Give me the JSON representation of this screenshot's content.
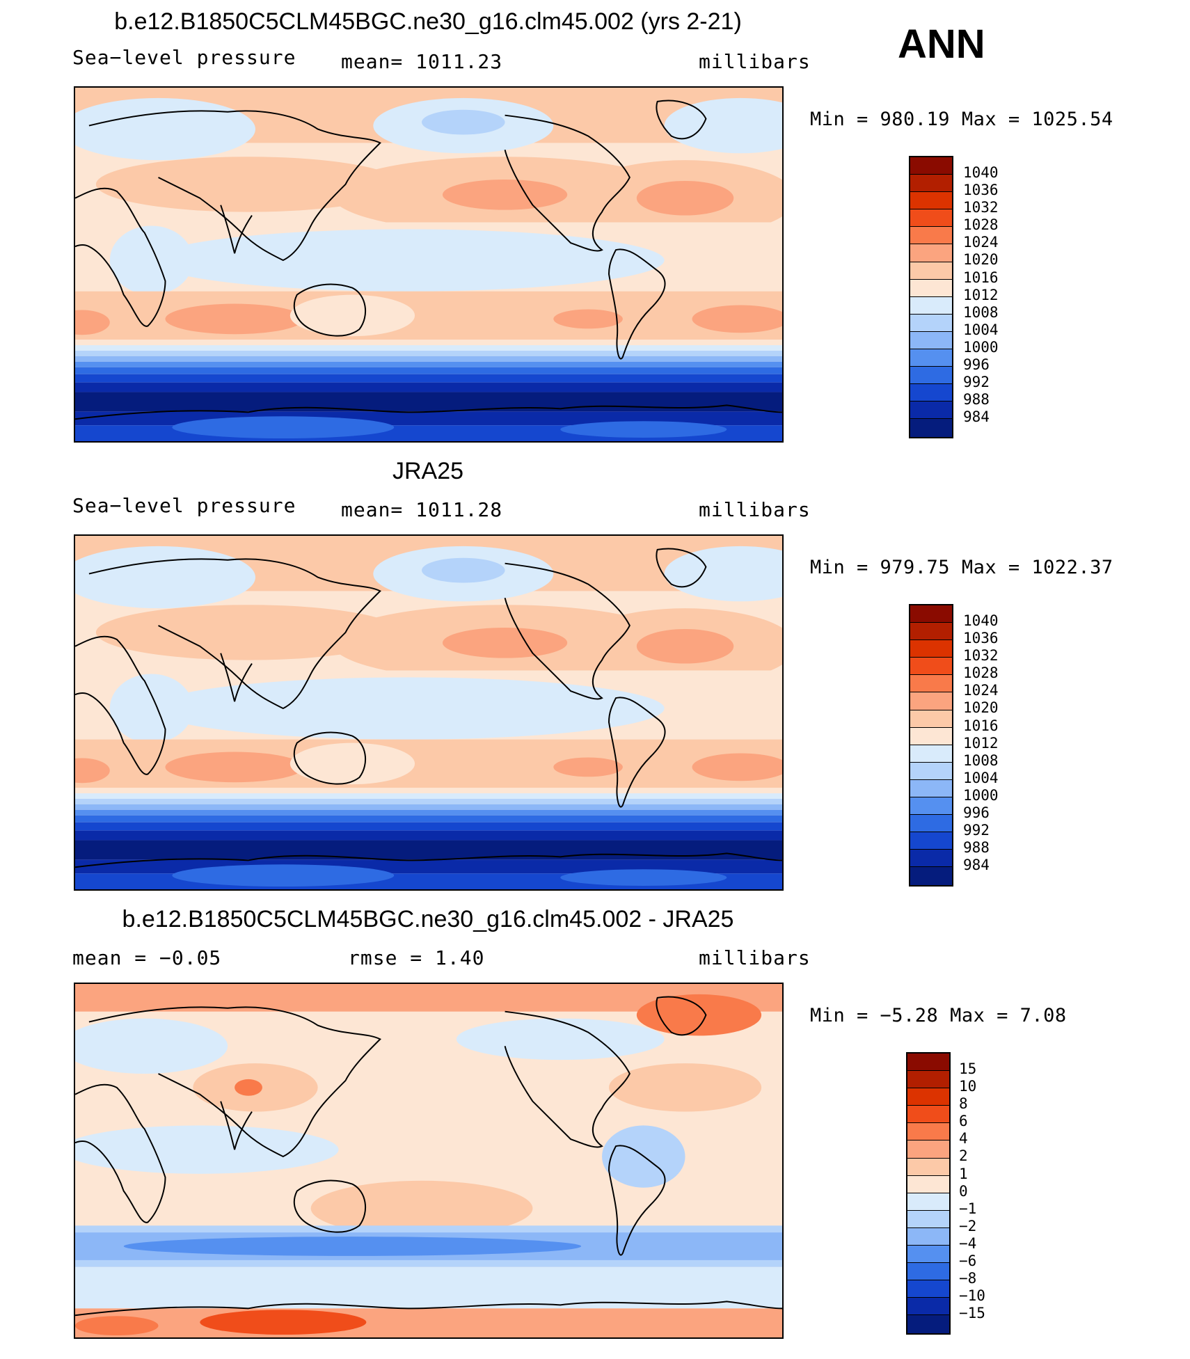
{
  "season": "ANN",
  "panels": [
    {
      "title": "b.e12.B1850C5CLM45BGC.ne30_g16.clm45.002 (yrs 2-21)",
      "left": "Sea−level pressure",
      "center": "mean=  1011.23",
      "right": "millibars",
      "minmax": "Min  =  980.19  Max  =  1025.54",
      "map_kind": "abs"
    },
    {
      "title": "JRA25",
      "left": "Sea−level pressure",
      "center": "mean=  1011.28",
      "right": "millibars",
      "minmax": "Min  =  979.75  Max  =  1022.37",
      "map_kind": "abs"
    },
    {
      "title": "b.e12.B1850C5CLM45BGC.ne30_g16.clm45.002 - JRA25",
      "left": "mean  =    −0.05",
      "center": "rmse  =     1.40",
      "right": "millibars",
      "minmax": "Min  =    −5.28  Max  =     7.08",
      "map_kind": "diff"
    }
  ],
  "colorbars": {
    "abs": {
      "labels": [
        "1040",
        "1036",
        "1032",
        "1028",
        "1024",
        "1020",
        "1016",
        "1012",
        "1008",
        "1004",
        "1000",
        "996",
        "992",
        "988",
        "984"
      ],
      "colors": [
        "#8a0b00",
        "#b21f00",
        "#dc3300",
        "#f04d1a",
        "#f97a4a",
        "#fba47f",
        "#fcc9a8",
        "#fde6d4",
        "#d9ebfb",
        "#b4d3fa",
        "#8cb7f7",
        "#5590f0",
        "#2e6be3",
        "#1547cf",
        "#0a2aa8",
        "#051c7d"
      ]
    },
    "diff": {
      "labels": [
        "15",
        "10",
        "8",
        "6",
        "4",
        "2",
        "1",
        "0",
        "−1",
        "−2",
        "−4",
        "−6",
        "−8",
        "−10",
        "−15"
      ],
      "colors": [
        "#8a0b00",
        "#b21f00",
        "#dc3300",
        "#f04d1a",
        "#f97a4a",
        "#fba47f",
        "#fcc9a8",
        "#fde6d4",
        "#d9ebfb",
        "#b4d3fa",
        "#8cb7f7",
        "#5590f0",
        "#2e6be3",
        "#1547cf",
        "#0a2aa8",
        "#051c7d"
      ]
    }
  }
}
